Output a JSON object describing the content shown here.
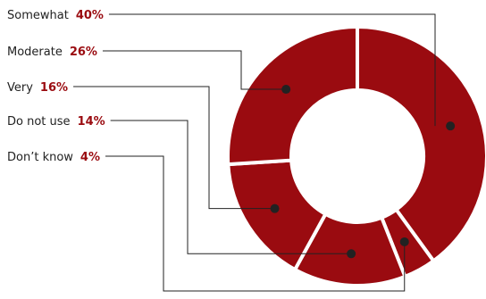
{
  "colors": {
    "slice": "#9a0b10",
    "label_value": "#9a0b10",
    "label_text": "#222222",
    "leader": "#222222"
  },
  "chart_data": {
    "type": "pie",
    "donut": true,
    "categories": [
      "Somewhat",
      "Moderate",
      "Very",
      "Do not use",
      "Don’t know"
    ],
    "values": [
      40,
      26,
      16,
      14,
      4
    ],
    "value_labels": [
      "40%",
      "26%",
      "16%",
      "14%",
      "4%"
    ],
    "slice_order_clockwise_from_top": [
      "Somewhat",
      "Don’t know",
      "Do not use",
      "Very",
      "Moderate"
    ],
    "legend": "left, with leader lines to slices"
  }
}
